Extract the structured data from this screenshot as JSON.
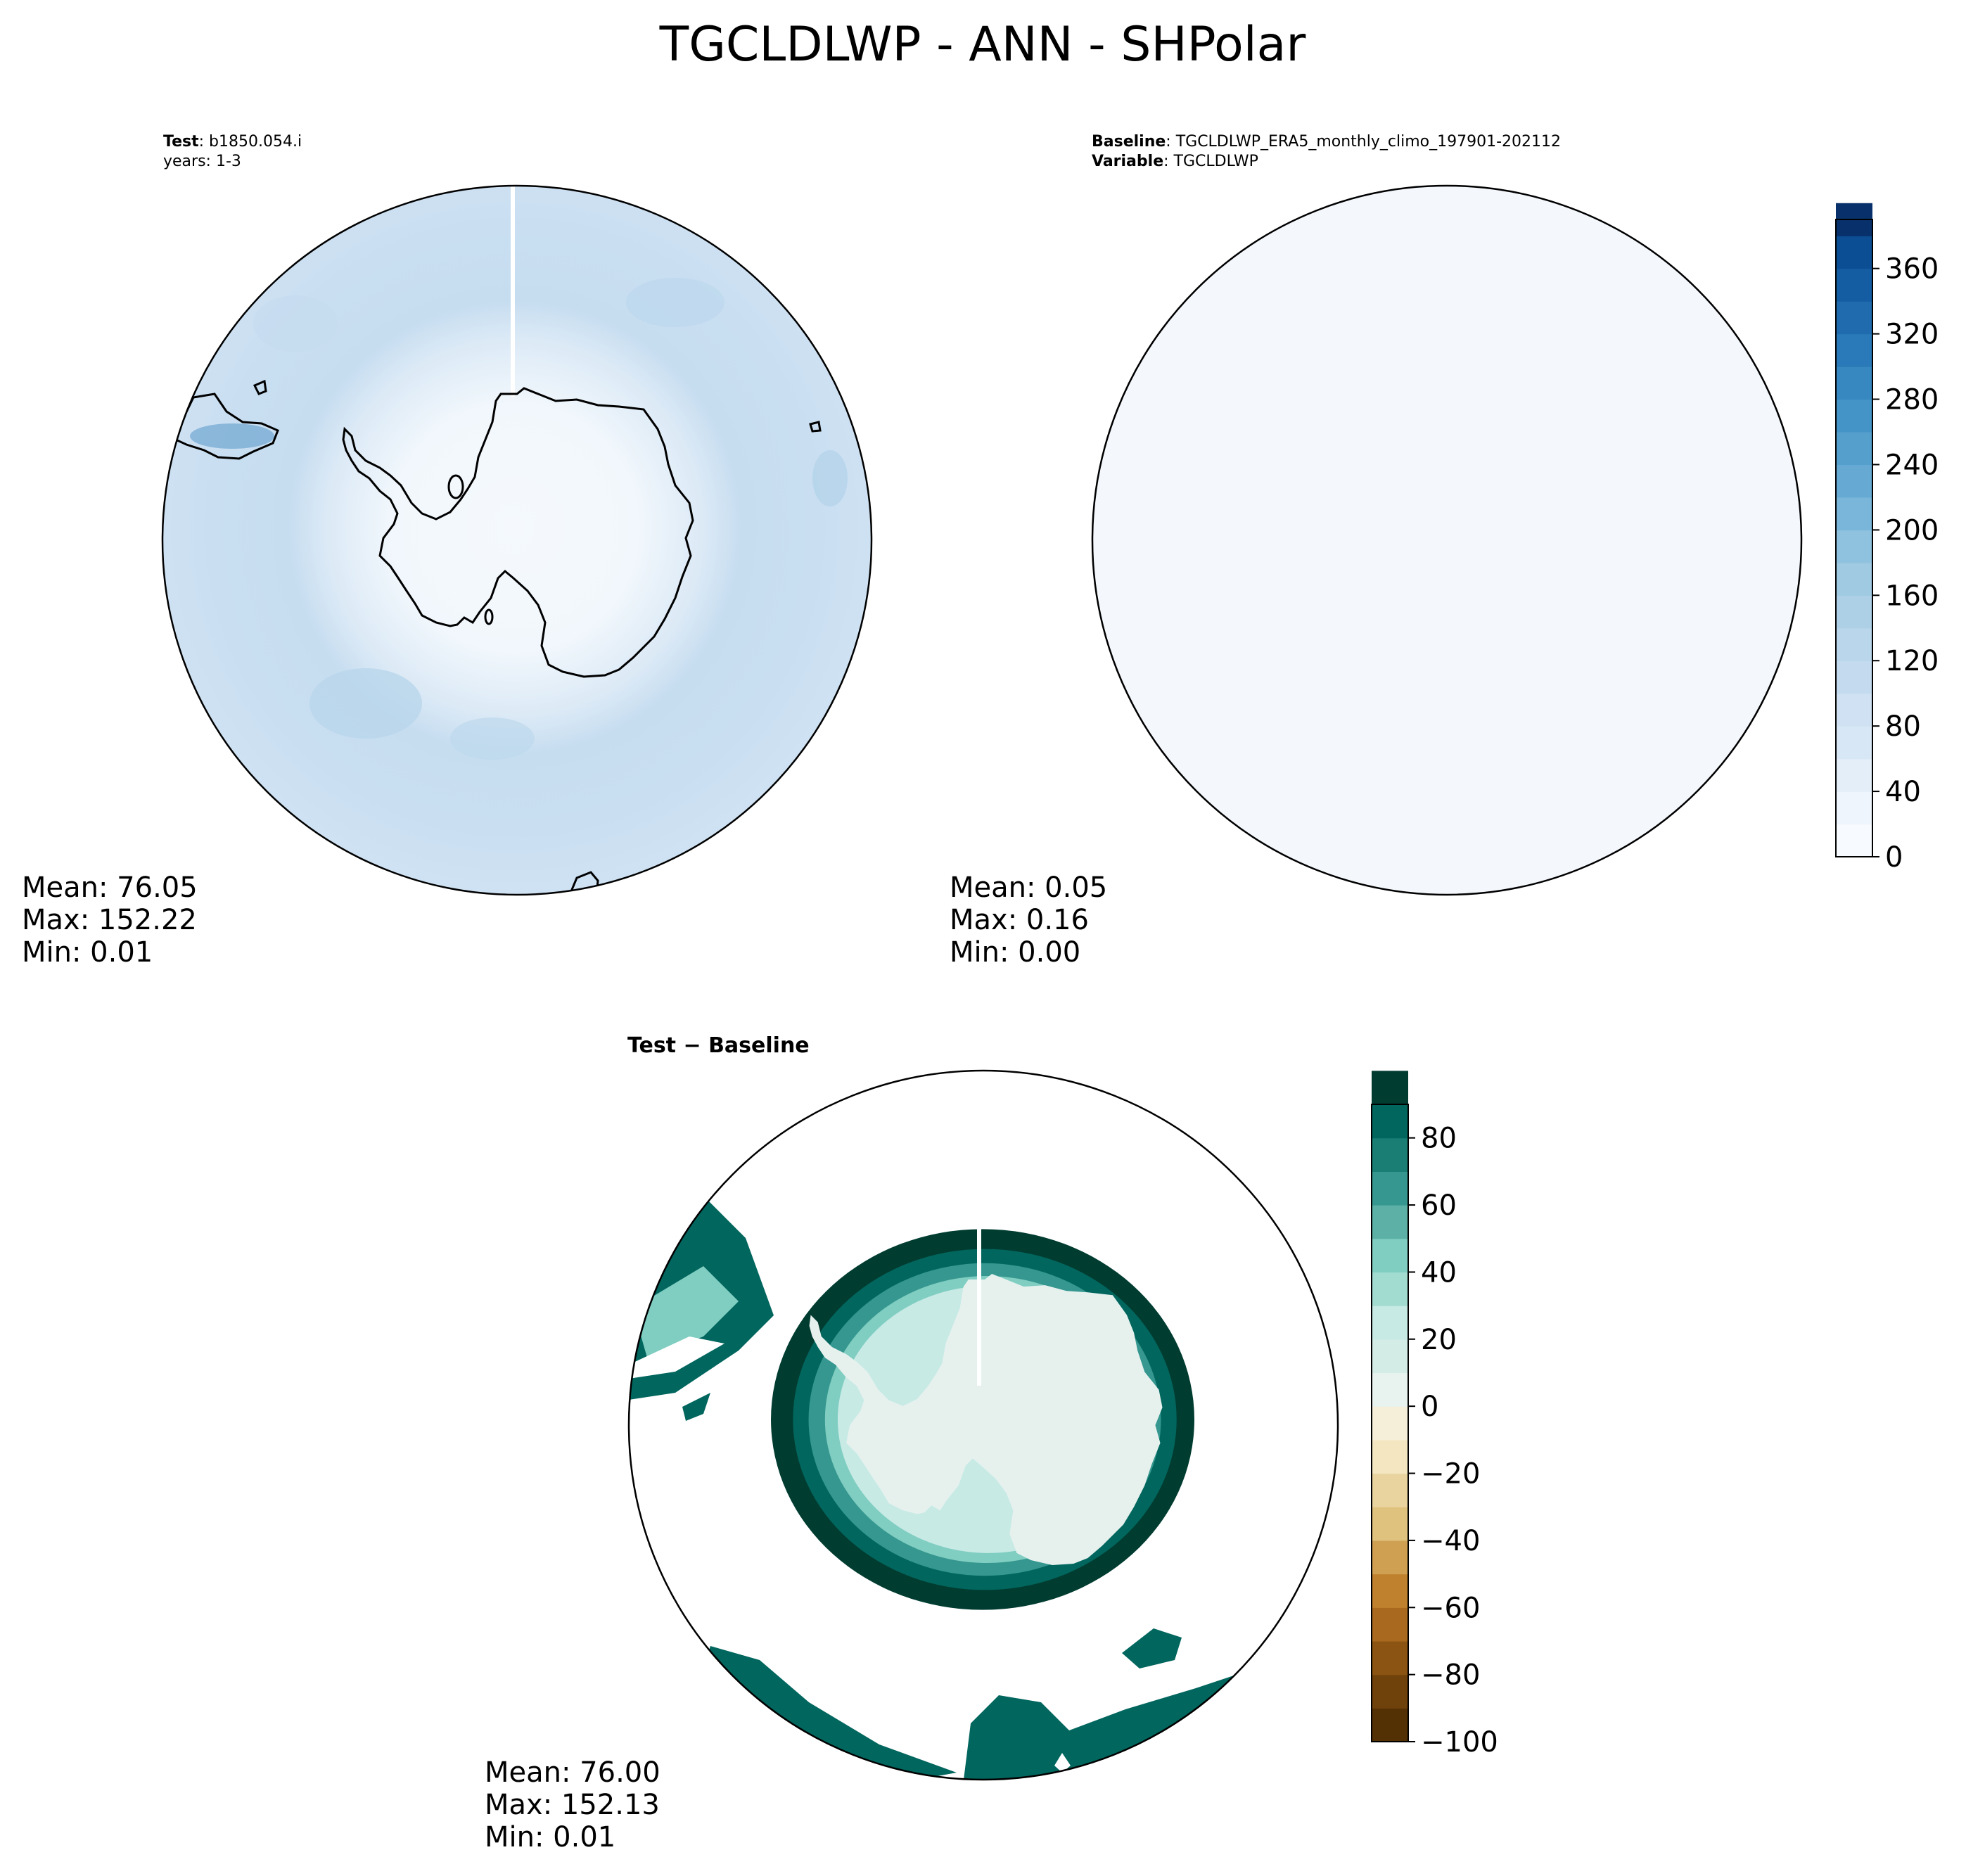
{
  "title": "TGCLDLWP - ANN - SHPolar",
  "panels": {
    "test": {
      "label": "Test",
      "case": "b1850.054.i",
      "years": "years: 1-3",
      "stats": {
        "mean": "Mean: 76.05",
        "max": "Max: 152.22",
        "min": "Min:  0.01"
      }
    },
    "baseline": {
      "label": "Baseline",
      "case": "TGCLDLWP_ERA5_monthly_climo_197901-202112",
      "variable_label": "Variable",
      "variable": "TGCLDLWP",
      "stats": {
        "mean": "Mean:  0.05",
        "max": "Max:  0.16",
        "min": "Min:  0.00"
      }
    },
    "diff": {
      "title_a": "Test",
      "title_sep": " − ",
      "title_b": "Baseline",
      "stats": {
        "mean": "Mean: 76.00",
        "max": "Max: 152.13",
        "min": "Min:  0.01"
      }
    }
  },
  "colorbars": {
    "main": {
      "cmap": "Blues",
      "vmin": 0,
      "vmax": 390,
      "step": 20,
      "ticks": [
        0,
        40,
        80,
        120,
        160,
        200,
        240,
        280,
        320,
        360
      ],
      "tick_labels": [
        "0",
        "40",
        "80",
        "120",
        "160",
        "200",
        "240",
        "280",
        "320",
        "360"
      ],
      "colors": [
        "#f7fbff",
        "#eef5fc",
        "#e3eef9",
        "#d8e7f5",
        "#cfe1f2",
        "#c4dbef",
        "#b9d6eb",
        "#aed0e7",
        "#a0c9e2",
        "#8fc2de",
        "#7ab6d9",
        "#66aad4",
        "#559fcd",
        "#4594c7",
        "#3787c0",
        "#2a79b8",
        "#1f6bae",
        "#155da3",
        "#0b4e94",
        "#08306b"
      ]
    },
    "diff": {
      "cmap": "BrBG",
      "vmin": -100,
      "vmax": 90,
      "step": 10,
      "ticks": [
        -100,
        -80,
        -60,
        -40,
        -20,
        0,
        20,
        40,
        60,
        80
      ],
      "tick_labels": [
        "−100",
        "−80",
        "−60",
        "−40",
        "−20",
        "0",
        "20",
        "40",
        "60",
        "80"
      ],
      "colors": [
        "#543005",
        "#70420b",
        "#8c5412",
        "#a96a1f",
        "#bf812d",
        "#cfa052",
        "#dfc27d",
        "#e9d49f",
        "#f3e6c1",
        "#f5efd9",
        "#e8f2ef",
        "#d4ece6",
        "#c7eae5",
        "#a2dcd1",
        "#80cdc1",
        "#5cb0a5",
        "#35978f",
        "#1a7e75",
        "#01665e",
        "#003c30"
      ]
    }
  },
  "chart_data": [
    {
      "type": "heatmap",
      "panel": "test",
      "projection": "south-polar-stereographic",
      "variable": "TGCLDLWP",
      "summary": {
        "mean": 76.05,
        "max": 152.22,
        "min": 0.01
      },
      "zrange": [
        0,
        390
      ],
      "approx_field": {
        "antarctic_interior": 5,
        "coastal_ring": 70,
        "southern_ocean": 110,
        "outer_ocean": 100
      }
    },
    {
      "type": "heatmap",
      "panel": "baseline",
      "projection": "south-polar-stereographic",
      "variable": "TGCLDLWP",
      "summary": {
        "mean": 0.05,
        "max": 0.16,
        "min": 0.0
      },
      "zrange": [
        0,
        390
      ],
      "approx_field": {
        "everywhere": 0.05
      }
    },
    {
      "type": "heatmap",
      "panel": "diff",
      "projection": "south-polar-stereographic",
      "variable": "TGCLDLWP",
      "summary": {
        "mean": 76.0,
        "max": 152.13,
        "min": 0.01
      },
      "zrange": [
        -100,
        90
      ],
      "approx_field": {
        "antarctic_interior": 5,
        "coastal_gradient": [
          20,
          90
        ],
        "ocean_beyond_90": "out-of-range (blank)"
      }
    }
  ]
}
